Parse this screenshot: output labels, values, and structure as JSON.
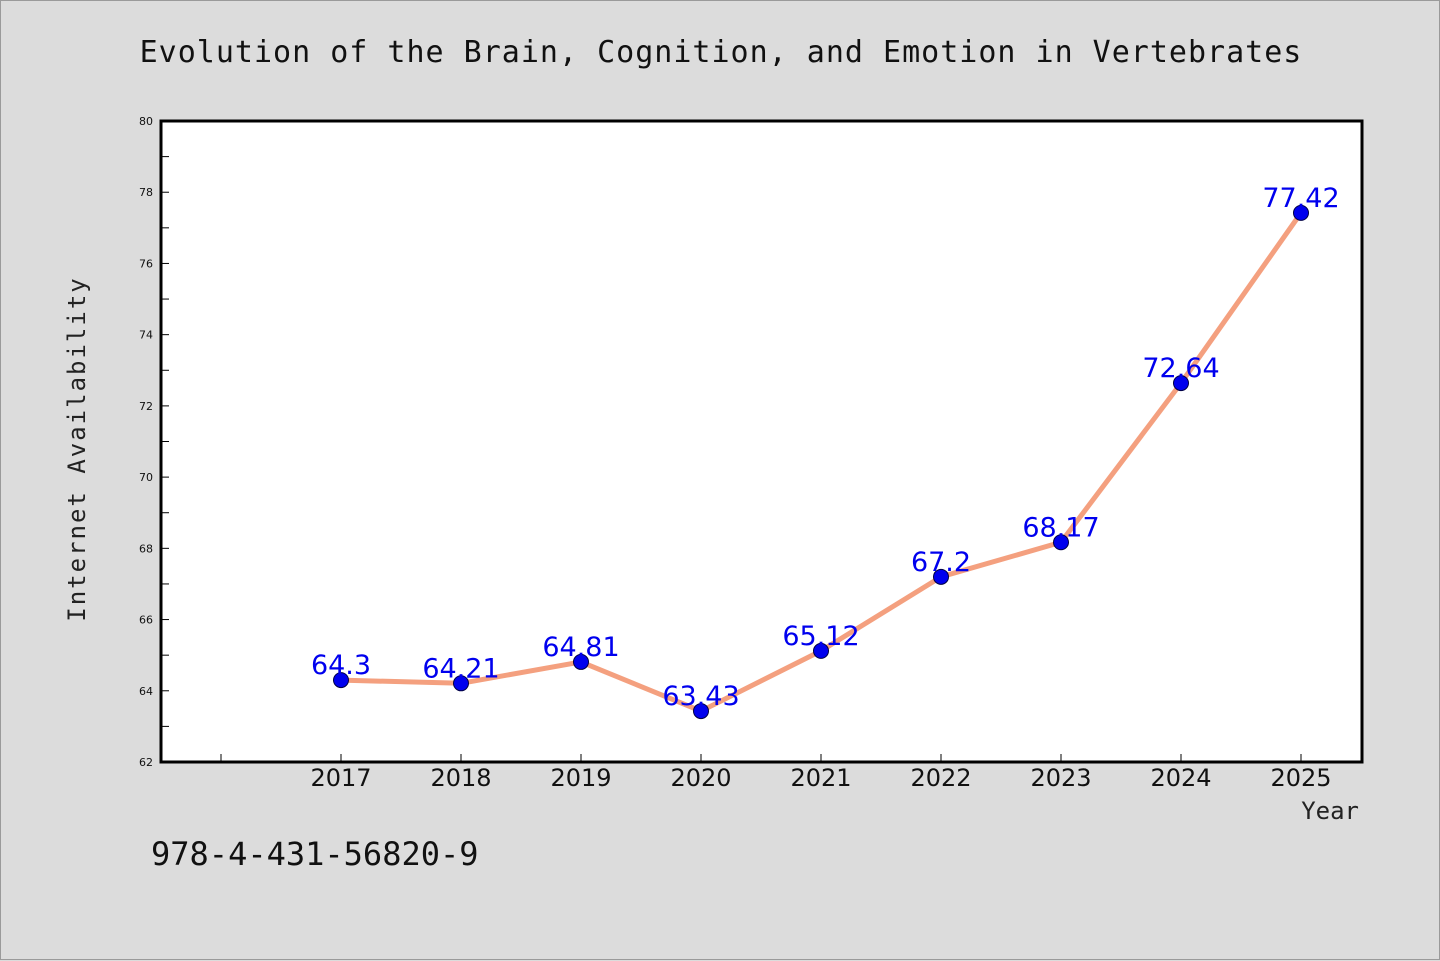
{
  "chart_data": {
    "type": "line",
    "title": "Evolution of the Brain, Cognition, and Emotion in Vertebrates",
    "xlabel": "Year",
    "ylabel": "Internet Availability",
    "categories": [
      "2017",
      "2018",
      "2019",
      "2020",
      "2021",
      "2022",
      "2023",
      "2024",
      "2025"
    ],
    "series": [
      {
        "values": [
          64.3,
          64.21,
          64.81,
          63.43,
          65.12,
          67.2,
          68.17,
          72.64,
          77.42
        ],
        "data_labels": [
          "64.3",
          "64.21",
          "64.81",
          "63.43",
          "65.12",
          "67.2",
          "68.17",
          "72.64",
          "77.42"
        ]
      }
    ],
    "ylim": [
      62,
      80
    ],
    "yticks": [
      "62",
      "64",
      "66",
      "68",
      "70",
      "72",
      "74",
      "76",
      "78",
      "80"
    ],
    "grid": false,
    "legend": "none",
    "line_color": "#f4a07f",
    "marker_color": "#0000ee",
    "label_color": "#0000ee",
    "plot_background": "#ffffff",
    "page_background": "#dcdcdc"
  },
  "footer": {
    "isbn": "978-4-431-56820-9"
  }
}
